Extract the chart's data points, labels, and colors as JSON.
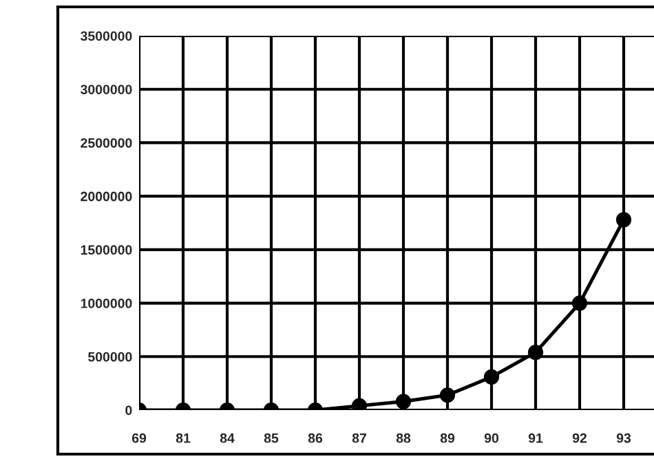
{
  "chart_data": {
    "type": "line",
    "categories": [
      "69",
      "81",
      "84",
      "85",
      "86",
      "87",
      "88",
      "89",
      "90",
      "91",
      "92",
      "93"
    ],
    "series": [
      {
        "color": "#000000",
        "values": [
          0,
          0,
          0,
          0,
          0,
          40000,
          80000,
          140000,
          310000,
          540000,
          1000000,
          1780000
        ]
      }
    ],
    "ylim": [
      0,
      3500000
    ],
    "yticks": [
      0,
      500000,
      1000000,
      1500000,
      2000000,
      2500000,
      3000000,
      3500000
    ],
    "grid": true,
    "marker": "circle",
    "line_style": "solid"
  }
}
